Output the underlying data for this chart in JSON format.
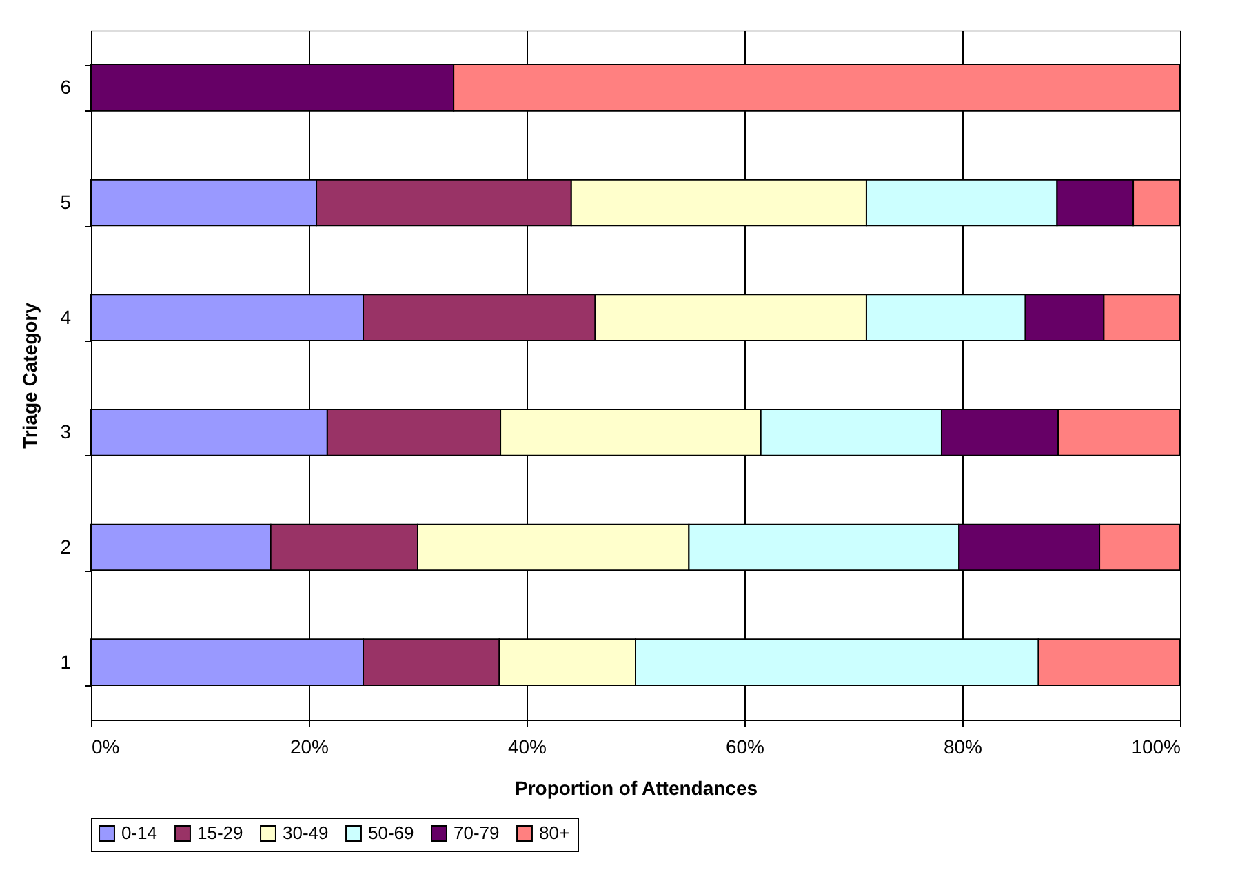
{
  "chart_data": {
    "type": "bar",
    "orientation": "horizontal",
    "stacked": true,
    "categories": [
      "6",
      "5",
      "4",
      "3",
      "2",
      "1"
    ],
    "series": [
      {
        "name": "0-14",
        "color": "#9999ff",
        "values": [
          null,
          20.7,
          25,
          21.7,
          16.5,
          25
        ]
      },
      {
        "name": "15-29",
        "color": "#993366",
        "values": [
          null,
          23.4,
          21.3,
          15.9,
          13.5,
          12.5
        ]
      },
      {
        "name": "30-49",
        "color": "#ffffcc",
        "values": [
          null,
          27.1,
          24.9,
          23.9,
          24.9,
          12.5
        ]
      },
      {
        "name": "50-69",
        "color": "#ccffff",
        "values": [
          null,
          17.5,
          14.6,
          16.6,
          24.8,
          37
        ]
      },
      {
        "name": "70-79",
        "color": "#660066",
        "values": [
          33.3,
          7,
          7.2,
          10.7,
          12.9,
          null
        ]
      },
      {
        "name": "80+",
        "color": "#ff8080",
        "values": [
          66.7,
          4.3,
          7,
          11.2,
          7.4,
          13
        ]
      }
    ],
    "xlim": [
      0,
      100
    ],
    "xticks": [
      {
        "value": 0,
        "label": "0%"
      },
      {
        "value": 20,
        "label": "20%"
      },
      {
        "value": 40,
        "label": "40%"
      },
      {
        "value": 60,
        "label": "60%"
      },
      {
        "value": 80,
        "label": "80%"
      },
      {
        "value": 100,
        "label": "100%"
      }
    ],
    "xlabel": "Proportion of Attendances",
    "ylabel": "Triage Category",
    "grid": "x",
    "legend": "bottom"
  }
}
